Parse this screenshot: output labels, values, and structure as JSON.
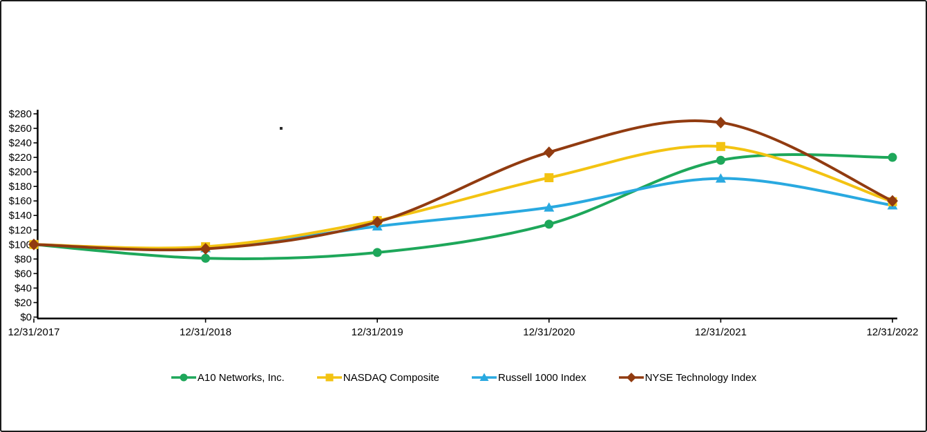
{
  "frame": {
    "background": "#ffffff",
    "border_color": "#1a1a1a"
  },
  "chart_data": {
    "type": "line",
    "title": "",
    "smooth": true,
    "grid": false,
    "legend_position": "bottom",
    "x_categories": [
      "12/31/2017",
      "12/31/2018",
      "12/31/2019",
      "12/31/2020",
      "12/31/2021",
      "12/31/2022"
    ],
    "y_axis": {
      "min": 0,
      "max": 280,
      "step": 20,
      "prefix": "$"
    },
    "series": [
      {
        "name": "A10 Networks, Inc.",
        "color": "#1EA75A",
        "marker": "circle",
        "values": [
          100,
          81,
          89,
          128,
          216,
          220
        ]
      },
      {
        "name": "NASDAQ Composite",
        "color": "#F3C312",
        "marker": "square",
        "values": [
          100,
          97,
          133,
          192,
          235,
          159
        ]
      },
      {
        "name": "Russell 1000 Index",
        "color": "#29A9E0",
        "marker": "triangle",
        "values": [
          100,
          95,
          125,
          151,
          191,
          154
        ]
      },
      {
        "name": "NYSE Technology Index",
        "color": "#913B10",
        "marker": "diamond",
        "values": [
          100,
          94,
          131,
          227,
          268,
          160
        ]
      }
    ],
    "draw_order": [
      0,
      2,
      1,
      3
    ],
    "axis_color": "#000000"
  }
}
